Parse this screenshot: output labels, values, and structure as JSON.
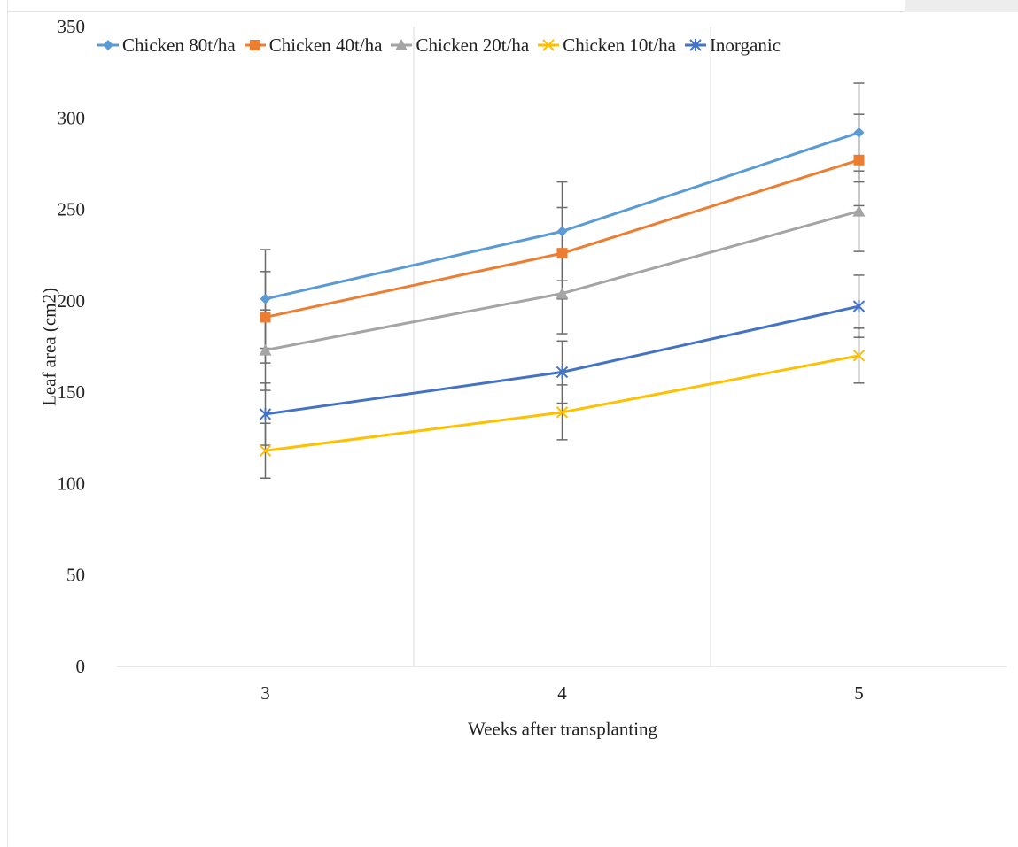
{
  "chart_data": {
    "type": "line",
    "xlabel": "Weeks after transplanting",
    "ylabel": "Leaf area (cm2)",
    "categories": [
      "3",
      "4",
      "5"
    ],
    "ylim": [
      0,
      350
    ],
    "yticks": [
      0,
      50,
      100,
      150,
      200,
      250,
      300,
      350
    ],
    "grid": "vertical",
    "legend_position": "top",
    "series": [
      {
        "name": "Chicken 80t/ha",
        "color": "#5b9bd5",
        "marker": "diamond",
        "values": [
          201,
          238,
          292
        ],
        "error": [
          27,
          27,
          27
        ]
      },
      {
        "name": "Chicken 40t/ha",
        "color": "#ed7d31",
        "marker": "square",
        "values": [
          191,
          226,
          277
        ],
        "error": [
          25,
          25,
          25
        ]
      },
      {
        "name": "Chicken 20t/ha",
        "color": "#a5a5a5",
        "marker": "triangle",
        "values": [
          173,
          204,
          249
        ],
        "error": [
          22,
          22,
          22
        ]
      },
      {
        "name": "Chicken 10t/ha",
        "color": "#ffc000",
        "marker": "x",
        "values": [
          118,
          139,
          170
        ],
        "error": [
          15,
          15,
          15
        ]
      },
      {
        "name": "Inorganic",
        "color": "#4472c4",
        "marker": "star",
        "values": [
          138,
          161,
          197
        ],
        "error": [
          17,
          17,
          17
        ]
      }
    ]
  }
}
